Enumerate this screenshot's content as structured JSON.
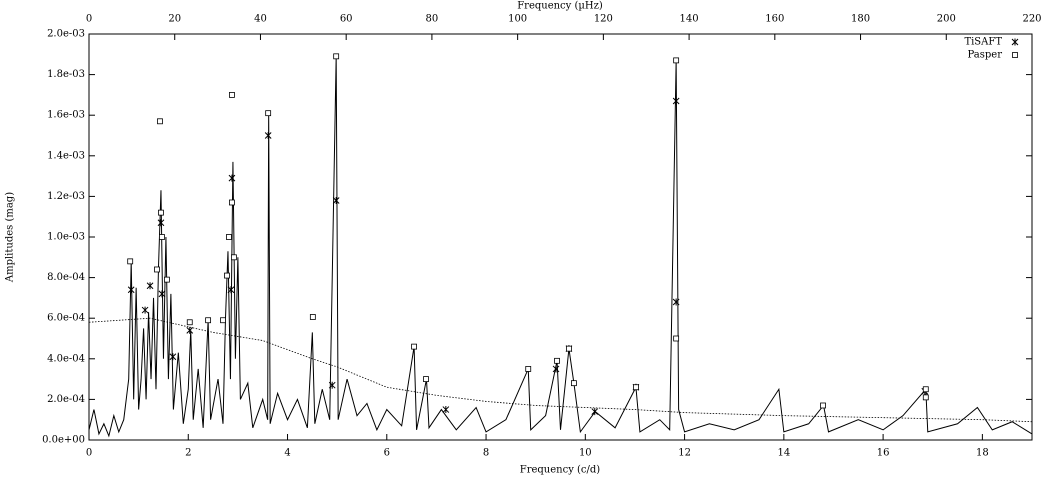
{
  "chart_data": {
    "type": "line",
    "xlabel": "Frequency (c/d)",
    "x2label": "Frequency (µHz)",
    "ylabel": "Amplitudes (mag)",
    "xlim": [
      0,
      19
    ],
    "xticks": [
      0,
      2,
      4,
      6,
      8,
      10,
      12,
      14,
      16,
      18
    ],
    "x2lim": [
      0,
      220
    ],
    "x2ticks": [
      0,
      20,
      40,
      60,
      80,
      100,
      120,
      140,
      160,
      180,
      200,
      220
    ],
    "ylim": [
      0,
      0.002
    ],
    "yticks": [
      {
        "value": 0,
        "label": "0.0e+00"
      },
      {
        "value": 0.0002,
        "label": "2.0e-04"
      },
      {
        "value": 0.0004,
        "label": "4.0e-04"
      },
      {
        "value": 0.0006,
        "label": "6.0e-04"
      },
      {
        "value": 0.0008,
        "label": "8.0e-04"
      },
      {
        "value": 0.001,
        "label": "1.0e-03"
      },
      {
        "value": 0.0012,
        "label": "1.2e-03"
      },
      {
        "value": 0.0014,
        "label": "1.4e-03"
      },
      {
        "value": 0.0016,
        "label": "1.6e-03"
      },
      {
        "value": 0.0018,
        "label": "1.8e-03"
      },
      {
        "value": 0.002,
        "label": "2.0e-03"
      }
    ],
    "legend": "top-right",
    "series": [
      {
        "color": "#000000",
        "style": "solid",
        "x": [
          0,
          0.1,
          0.2,
          0.3,
          0.4,
          0.5,
          0.6,
          0.7,
          0.8,
          0.85,
          0.9,
          0.95,
          1.0,
          1.05,
          1.1,
          1.15,
          1.2,
          1.25,
          1.3,
          1.35,
          1.4,
          1.45,
          1.5,
          1.55,
          1.6,
          1.65,
          1.7,
          1.8,
          1.9,
          2.0,
          2.05,
          2.1,
          2.2,
          2.3,
          2.4,
          2.45,
          2.6,
          2.7,
          2.75,
          2.8,
          2.85,
          2.9,
          2.95,
          3.0,
          3.05,
          3.2,
          3.3,
          3.5,
          3.6,
          3.62,
          3.65,
          3.8,
          4.0,
          4.2,
          4.4,
          4.5,
          4.55,
          4.7,
          4.85,
          4.98,
          5.02,
          5.2,
          5.4,
          5.6,
          5.8,
          6.0,
          6.3,
          6.55,
          6.6,
          6.8,
          6.85,
          7.1,
          7.4,
          7.8,
          8.0,
          8.4,
          8.85,
          8.9,
          9.2,
          9.43,
          9.5,
          9.67,
          9.77,
          9.9,
          10.2,
          10.6,
          11.02,
          11.1,
          11.5,
          11.7,
          11.83,
          11.88,
          12.0,
          12.5,
          13.0,
          13.5,
          13.9,
          14.0,
          14.5,
          14.8,
          14.9,
          15.5,
          16.0,
          16.4,
          16.86,
          16.9,
          17.5,
          17.9,
          18.2,
          18.6,
          19.0
        ],
        "values": [
          5e-05,
          0.00015,
          3e-05,
          8e-05,
          2e-05,
          0.00012,
          4e-05,
          0.0001,
          0.0003,
          0.00088,
          0.0002,
          0.00075,
          0.00015,
          0.0003,
          0.00055,
          0.0002,
          0.00063,
          0.0003,
          0.0007,
          0.00025,
          0.00085,
          0.00123,
          0.0004,
          0.001,
          0.0003,
          0.00072,
          0.00015,
          0.00043,
          8e-05,
          0.00025,
          0.00054,
          0.0001,
          0.00035,
          6e-05,
          0.00059,
          0.0001,
          0.0003,
          8e-05,
          0.0006,
          0.00093,
          0.0003,
          0.00137,
          0.0004,
          0.0009,
          0.0002,
          0.00028,
          6e-05,
          0.0002,
          0.0001,
          0.00161,
          8e-05,
          0.00023,
          0.0001,
          0.0002,
          6e-05,
          0.00053,
          8e-05,
          0.00025,
          0.0001,
          0.00189,
          0.0001,
          0.0003,
          0.00012,
          0.00018,
          5e-05,
          0.00015,
          7e-05,
          0.00046,
          5e-05,
          0.0003,
          6e-05,
          0.00015,
          5e-05,
          0.00016,
          4e-05,
          0.0001,
          0.00035,
          5e-05,
          0.00012,
          0.00039,
          5e-05,
          0.00045,
          0.00028,
          4e-05,
          0.00014,
          6e-05,
          0.00026,
          4e-05,
          0.0001,
          5e-05,
          0.00187,
          0.00015,
          4e-05,
          8e-05,
          5e-05,
          0.0001,
          0.00025,
          4e-05,
          8e-05,
          0.00017,
          4e-05,
          0.0001,
          5e-05,
          0.00012,
          0.00025,
          4e-05,
          8e-05,
          0.00016,
          5e-05,
          9e-05,
          3e-05
        ]
      },
      {
        "color": "#000000",
        "style": "dotted",
        "x": [
          0,
          1.23,
          2.5,
          3.5,
          4.5,
          5,
          6,
          7,
          8,
          9,
          10,
          11,
          12,
          14,
          16,
          18,
          19
        ],
        "values": [
          0.00058,
          0.0006,
          0.00053,
          0.00049,
          0.0004,
          0.00036,
          0.00026,
          0.00022,
          0.00019,
          0.00017,
          0.00016,
          0.00015,
          0.000135,
          0.00012,
          0.00011,
          0.0001,
          9e-05
        ]
      },
      {
        "name": "TiSAFT",
        "color": "#000000",
        "marker": "star",
        "x": [
          0.85,
          1.45,
          1.23,
          1.13,
          1.47,
          1.69,
          2.03,
          2.88,
          2.86,
          3.61,
          4.98,
          4.9,
          7.19,
          9.41,
          9.67,
          11.02,
          11.83,
          11.83,
          10.19,
          16.84
        ],
        "values": [
          0.00074,
          0.00107,
          0.00076,
          0.00064,
          0.00072,
          0.00041,
          0.00054,
          0.00129,
          0.00074,
          0.0015,
          0.00118,
          0.00027,
          0.00015,
          0.00035,
          0.00045,
          0.00026,
          0.00167,
          0.00068,
          0.00014,
          0.00024
        ]
      },
      {
        "name": "Pasper",
        "color": "#000000",
        "marker": "square",
        "x": [
          0.83,
          1.43,
          1.37,
          1.45,
          1.47,
          1.57,
          2.03,
          2.4,
          2.7,
          2.78,
          2.82,
          2.88,
          2.88,
          2.92,
          3.61,
          4.51,
          4.98,
          6.55,
          6.79,
          8.85,
          9.43,
          9.67,
          9.77,
          11.02,
          11.83,
          11.83,
          14.79,
          16.86,
          16.86
        ],
        "values": [
          0.00088,
          0.00157,
          0.00084,
          0.00112,
          0.001,
          0.00079,
          0.00058,
          0.00059,
          0.00059,
          0.00081,
          0.001,
          0.0017,
          0.00117,
          0.0009,
          0.00161,
          0.000606,
          0.00189,
          0.00046,
          0.0003,
          0.00035,
          0.00039,
          0.00045,
          0.00028,
          0.00026,
          0.00187,
          0.0005,
          0.00017,
          0.00025,
          0.00021
        ]
      }
    ]
  }
}
